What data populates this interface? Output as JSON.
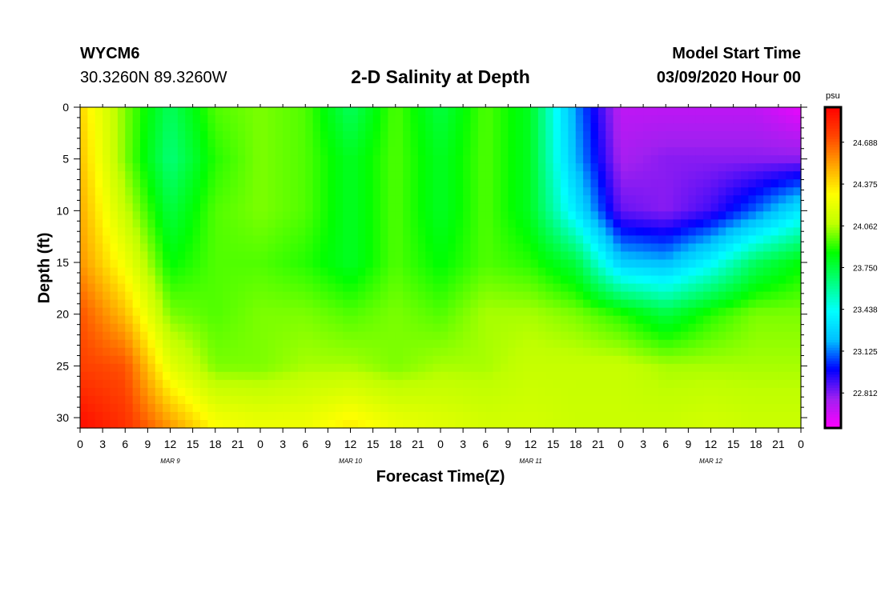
{
  "header": {
    "station": "WYCM6",
    "coordinates": "30.3260N 89.3260W",
    "title": "2-D Salinity at Depth",
    "start_label": "Model Start Time",
    "start_value": "03/09/2020 Hour 00"
  },
  "chart_data": {
    "type": "heatmap",
    "title": "2-D Salinity at Depth",
    "xlabel": "Forecast Time(Z)",
    "ylabel": "Depth (ft)",
    "x_ticks": [
      "0",
      "3",
      "6",
      "9",
      "12",
      "15",
      "18",
      "21",
      "0",
      "3",
      "6",
      "9",
      "12",
      "15",
      "18",
      "21",
      "0",
      "3",
      "6",
      "9",
      "12",
      "15",
      "18",
      "21",
      "0",
      "3",
      "6",
      "9",
      "12",
      "15",
      "18",
      "21",
      "0"
    ],
    "x_range_hours": [
      0,
      96
    ],
    "day_labels": [
      {
        "label": "MAR 9",
        "hour": 12
      },
      {
        "label": "MAR 10",
        "hour": 36
      },
      {
        "label": "MAR 11",
        "hour": 60
      },
      {
        "label": "MAR 12",
        "hour": 84
      }
    ],
    "y_ticks": [
      0,
      5,
      10,
      15,
      20,
      25,
      30
    ],
    "ylim": [
      0,
      31
    ],
    "y_inverted": true,
    "colorbar": {
      "unit": "psu",
      "ticks": [
        24.688,
        24.375,
        24.062,
        23.75,
        23.438,
        23.125,
        22.812
      ],
      "range": [
        22.55,
        24.95
      ],
      "colors": [
        "#ff00ff",
        "#a020f0",
        "#0000ff",
        "#00bfff",
        "#00ffff",
        "#00ff7f",
        "#00ff00",
        "#bfff00",
        "#ffff00",
        "#ffa500",
        "#ff4500",
        "#ff0000"
      ]
    },
    "grid_hours": [
      0,
      6,
      12,
      18,
      24,
      30,
      36,
      42,
      48,
      54,
      60,
      66,
      72,
      78,
      84,
      90,
      96
    ],
    "grid_depths": [
      0,
      5,
      10,
      15,
      20,
      25,
      31
    ],
    "salinity_grid": [
      [
        24.4,
        24.0,
        23.7,
        23.95,
        24.0,
        23.95,
        23.7,
        23.95,
        23.75,
        23.95,
        23.8,
        23.15,
        22.7,
        22.7,
        22.7,
        22.7,
        22.6
      ],
      [
        24.45,
        24.0,
        23.65,
        23.9,
        24.0,
        23.95,
        23.8,
        23.95,
        23.8,
        23.95,
        23.8,
        23.2,
        22.75,
        22.8,
        22.8,
        22.8,
        22.8
      ],
      [
        24.5,
        24.1,
        23.75,
        23.95,
        24.0,
        23.95,
        23.8,
        23.95,
        23.8,
        23.95,
        23.8,
        23.35,
        22.85,
        22.8,
        22.9,
        23.1,
        23.35
      ],
      [
        24.55,
        24.25,
        23.85,
        23.95,
        23.95,
        23.9,
        23.8,
        23.95,
        23.85,
        23.95,
        23.9,
        23.75,
        23.25,
        23.2,
        23.4,
        23.7,
        23.85
      ],
      [
        24.7,
        24.45,
        24.0,
        23.95,
        24.0,
        24.0,
        23.95,
        24.0,
        23.95,
        24.05,
        24.05,
        24.0,
        23.9,
        23.75,
        23.9,
        24.0,
        24.0
      ],
      [
        24.75,
        24.7,
        24.2,
        24.0,
        24.0,
        24.05,
        24.05,
        24.0,
        24.05,
        24.05,
        24.1,
        24.1,
        24.1,
        24.05,
        24.05,
        24.05,
        24.05
      ],
      [
        24.92,
        24.8,
        24.55,
        24.3,
        24.25,
        24.25,
        24.35,
        24.25,
        24.2,
        24.15,
        24.15,
        24.12,
        24.12,
        24.12,
        24.15,
        24.12,
        24.12
      ]
    ]
  }
}
